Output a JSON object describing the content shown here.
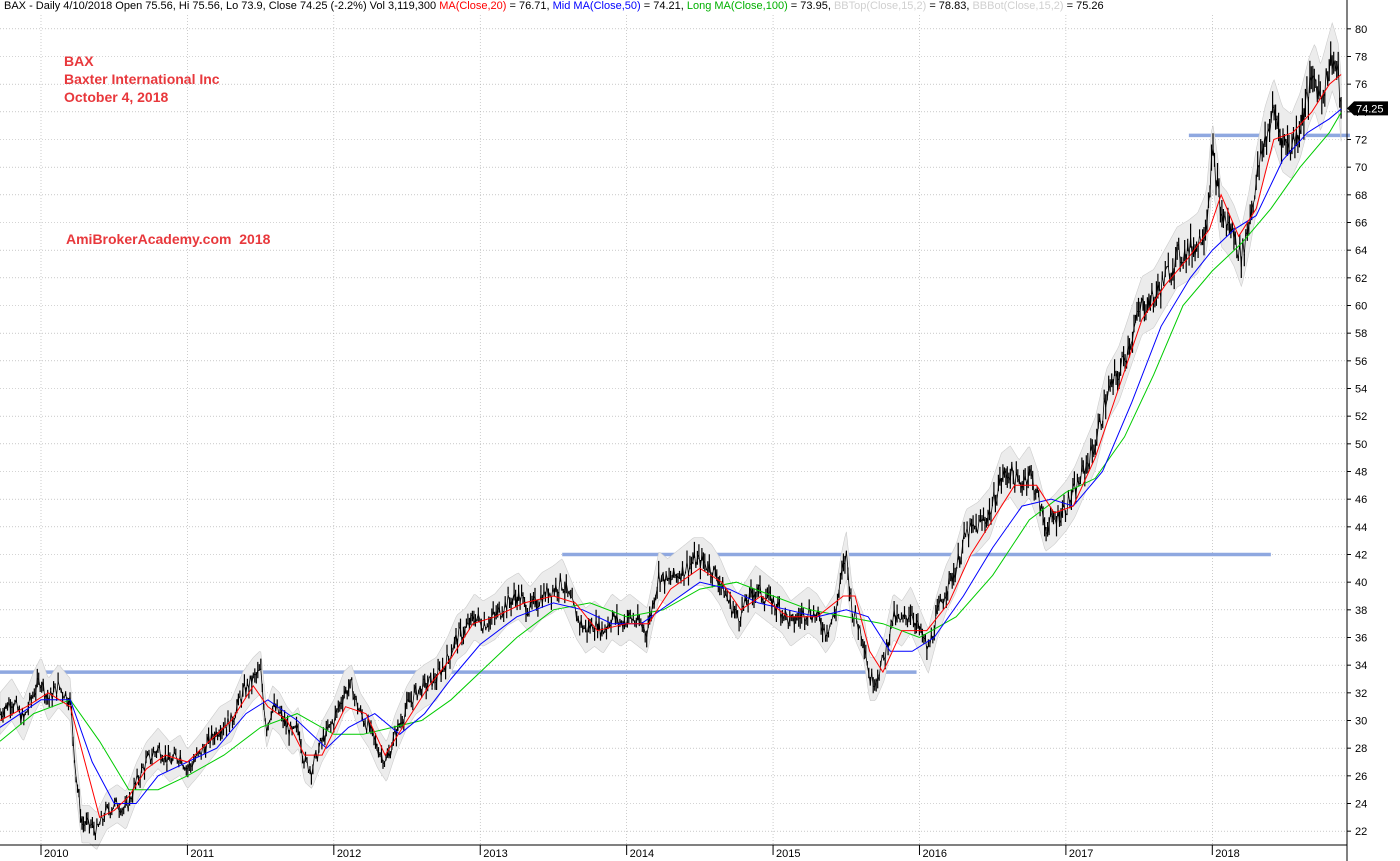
{
  "header": {
    "main": "BAX - Daily 4/10/2018 Open 75.56, Hi 75.56, Lo 73.9, Close 74.25 (-2.2%) Vol 3,119,300",
    "ma20": "MA(Close,20)",
    "ma20_value": " = 76.71, ",
    "ma50": "Mid MA(Close,50)",
    "ma50_value": " = 74.21, ",
    "ma100": "Long MA(Close,100)",
    "ma100_value": " = 73.95, ",
    "bbtop": "BBTop(Close,15,2)",
    "bbtop_value": " = 78.83, ",
    "bbbot": "BBBot(Close,15,2)",
    "bbbot_value": " = 75.26"
  },
  "annotations": {
    "ticker": "BAX",
    "company": "Baxter International Inc",
    "date": "October 4, 2018",
    "watermark": "AmiBrokerAcademy.com  2018"
  },
  "last_price_label": "74.25",
  "colors": {
    "price": "#000000",
    "ma20": "#ff0000",
    "ma50": "#0000ff",
    "ma100": "#00cc00",
    "bollinger": "#cccccc",
    "support_lines": "#8fa8e0",
    "annotation_text": "#e8383c",
    "grid": "#aaaaaa"
  },
  "chart_data": {
    "type": "line",
    "ylim": [
      21,
      81
    ],
    "y_ticks": [
      22,
      24,
      26,
      28,
      30,
      32,
      34,
      36,
      38,
      40,
      42,
      44,
      46,
      48,
      50,
      52,
      54,
      56,
      58,
      60,
      62,
      64,
      66,
      68,
      70,
      72,
      74,
      76,
      78,
      80
    ],
    "x_labels": [
      "2010",
      "2011",
      "2012",
      "2013",
      "2014",
      "2015",
      "2016",
      "2017",
      "2018"
    ],
    "x_start": 2009.72,
    "x_end": 2018.92,
    "grid": true,
    "price": [
      [
        2009.72,
        30.5
      ],
      [
        2009.8,
        31.5
      ],
      [
        2009.88,
        30.0
      ],
      [
        2009.95,
        32.0
      ],
      [
        2010.0,
        33.0
      ],
      [
        2010.05,
        31.5
      ],
      [
        2010.12,
        32.5
      ],
      [
        2010.2,
        31.5
      ],
      [
        2010.24,
        26.0
      ],
      [
        2010.28,
        22.5
      ],
      [
        2010.33,
        22.5
      ],
      [
        2010.38,
        22.0
      ],
      [
        2010.45,
        23.5
      ],
      [
        2010.52,
        24.0
      ],
      [
        2010.58,
        23.5
      ],
      [
        2010.65,
        25.5
      ],
      [
        2010.72,
        27.0
      ],
      [
        2010.8,
        28.0
      ],
      [
        2010.88,
        27.0
      ],
      [
        2010.95,
        27.5
      ],
      [
        2011.0,
        26.5
      ],
      [
        2011.08,
        27.5
      ],
      [
        2011.15,
        28.5
      ],
      [
        2011.22,
        29.5
      ],
      [
        2011.3,
        30.0
      ],
      [
        2011.38,
        32.0
      ],
      [
        2011.45,
        33.0
      ],
      [
        2011.5,
        33.5
      ],
      [
        2011.54,
        29.5
      ],
      [
        2011.58,
        31.0
      ],
      [
        2011.63,
        30.5
      ],
      [
        2011.68,
        29.5
      ],
      [
        2011.72,
        29.0
      ],
      [
        2011.76,
        29.5
      ],
      [
        2011.8,
        27.0
      ],
      [
        2011.85,
        26.5
      ],
      [
        2011.92,
        28.5
      ],
      [
        2012.0,
        30.0
      ],
      [
        2012.07,
        32.0
      ],
      [
        2012.12,
        32.5
      ],
      [
        2012.18,
        30.5
      ],
      [
        2012.24,
        29.5
      ],
      [
        2012.3,
        28.0
      ],
      [
        2012.36,
        27.0
      ],
      [
        2012.42,
        29.0
      ],
      [
        2012.5,
        31.0
      ],
      [
        2012.56,
        32.0
      ],
      [
        2012.62,
        32.5
      ],
      [
        2012.7,
        33.0
      ],
      [
        2012.78,
        34.5
      ],
      [
        2012.84,
        36.0
      ],
      [
        2012.9,
        36.5
      ],
      [
        2012.96,
        37.5
      ],
      [
        2013.02,
        37.0
      ],
      [
        2013.1,
        37.5
      ],
      [
        2013.18,
        38.5
      ],
      [
        2013.26,
        39.0
      ],
      [
        2013.34,
        38.0
      ],
      [
        2013.42,
        39.0
      ],
      [
        2013.5,
        39.5
      ],
      [
        2013.56,
        40.0
      ],
      [
        2013.62,
        38.5
      ],
      [
        2013.66,
        37.5
      ],
      [
        2013.72,
        36.5
      ],
      [
        2013.78,
        37.0
      ],
      [
        2013.84,
        36.5
      ],
      [
        2013.9,
        37.5
      ],
      [
        2013.96,
        37.0
      ],
      [
        2014.02,
        37.5
      ],
      [
        2014.08,
        37.0
      ],
      [
        2014.14,
        36.5
      ],
      [
        2014.22,
        40.5
      ],
      [
        2014.28,
        40.0
      ],
      [
        2014.34,
        40.5
      ],
      [
        2014.4,
        41.0
      ],
      [
        2014.46,
        41.5
      ],
      [
        2014.52,
        41.5
      ],
      [
        2014.58,
        41.0
      ],
      [
        2014.64,
        40.0
      ],
      [
        2014.7,
        38.5
      ],
      [
        2014.76,
        37.5
      ],
      [
        2014.82,
        38.5
      ],
      [
        2014.88,
        39.5
      ],
      [
        2014.94,
        39.0
      ],
      [
        2015.0,
        38.5
      ],
      [
        2015.06,
        38.0
      ],
      [
        2015.12,
        37.0
      ],
      [
        2015.18,
        37.5
      ],
      [
        2015.24,
        38.0
      ],
      [
        2015.3,
        37.5
      ],
      [
        2015.36,
        36.5
      ],
      [
        2015.42,
        37.5
      ],
      [
        2015.47,
        40.5
      ],
      [
        2015.5,
        42.0
      ],
      [
        2015.54,
        38.0
      ],
      [
        2015.58,
        37.0
      ],
      [
        2015.62,
        36.0
      ],
      [
        2015.66,
        33.0
      ],
      [
        2015.7,
        33.0
      ],
      [
        2015.76,
        34.5
      ],
      [
        2015.82,
        37.5
      ],
      [
        2015.88,
        37.0
      ],
      [
        2015.94,
        38.0
      ],
      [
        2016.0,
        36.5
      ],
      [
        2016.06,
        35.0
      ],
      [
        2016.12,
        37.5
      ],
      [
        2016.18,
        39.5
      ],
      [
        2016.25,
        41.0
      ],
      [
        2016.32,
        43.5
      ],
      [
        2016.4,
        44.0
      ],
      [
        2016.48,
        45.0
      ],
      [
        2016.56,
        47.5
      ],
      [
        2016.62,
        48.0
      ],
      [
        2016.68,
        47.0
      ],
      [
        2016.75,
        48.0
      ],
      [
        2016.8,
        46.5
      ],
      [
        2016.86,
        44.0
      ],
      [
        2016.92,
        44.5
      ],
      [
        2017.0,
        45.5
      ],
      [
        2017.06,
        46.5
      ],
      [
        2017.12,
        48.0
      ],
      [
        2017.2,
        50.0
      ],
      [
        2017.28,
        53.5
      ],
      [
        2017.36,
        55.0
      ],
      [
        2017.44,
        57.5
      ],
      [
        2017.52,
        60.0
      ],
      [
        2017.6,
        60.5
      ],
      [
        2017.68,
        62.0
      ],
      [
        2017.76,
        63.5
      ],
      [
        2017.84,
        64.0
      ],
      [
        2017.9,
        64.5
      ],
      [
        2017.96,
        66.0
      ],
      [
        2018.0,
        71.0
      ],
      [
        2018.03,
        69.0
      ],
      [
        2018.06,
        66.5
      ],
      [
        2018.1,
        66.0
      ],
      [
        2018.15,
        65.0
      ],
      [
        2018.2,
        63.5
      ],
      [
        2018.25,
        66.0
      ],
      [
        2018.3,
        69.0
      ],
      [
        2018.36,
        72.0
      ],
      [
        2018.42,
        74.0
      ],
      [
        2018.48,
        72.0
      ],
      [
        2018.54,
        71.5
      ],
      [
        2018.6,
        73.0
      ],
      [
        2018.66,
        75.5
      ],
      [
        2018.7,
        76.5
      ],
      [
        2018.74,
        75.0
      ],
      [
        2018.78,
        76.5
      ],
      [
        2018.82,
        78.0
      ],
      [
        2018.86,
        76.5
      ],
      [
        2018.88,
        74.25
      ]
    ],
    "ma20": [
      [
        2009.72,
        30.0
      ],
      [
        2009.9,
        31.0
      ],
      [
        2010.05,
        32.0
      ],
      [
        2010.2,
        31.0
      ],
      [
        2010.3,
        27.0
      ],
      [
        2010.4,
        23.0
      ],
      [
        2010.5,
        23.5
      ],
      [
        2010.6,
        24.5
      ],
      [
        2010.72,
        26.5
      ],
      [
        2010.85,
        27.5
      ],
      [
        2011.0,
        27.0
      ],
      [
        2011.15,
        28.5
      ],
      [
        2011.3,
        30.0
      ],
      [
        2011.45,
        32.5
      ],
      [
        2011.55,
        31.0
      ],
      [
        2011.68,
        30.0
      ],
      [
        2011.8,
        27.5
      ],
      [
        2011.92,
        27.5
      ],
      [
        2012.08,
        31.0
      ],
      [
        2012.22,
        30.5
      ],
      [
        2012.35,
        27.5
      ],
      [
        2012.5,
        30.0
      ],
      [
        2012.65,
        32.5
      ],
      [
        2012.8,
        34.5
      ],
      [
        2012.95,
        37.0
      ],
      [
        2013.1,
        37.5
      ],
      [
        2013.3,
        38.5
      ],
      [
        2013.5,
        39.0
      ],
      [
        2013.65,
        38.5
      ],
      [
        2013.8,
        36.5
      ],
      [
        2014.0,
        37.0
      ],
      [
        2014.15,
        37.0
      ],
      [
        2014.3,
        39.5
      ],
      [
        2014.5,
        41.0
      ],
      [
        2014.65,
        40.0
      ],
      [
        2014.78,
        38.0
      ],
      [
        2014.92,
        39.0
      ],
      [
        2015.1,
        37.5
      ],
      [
        2015.3,
        37.5
      ],
      [
        2015.48,
        39.0
      ],
      [
        2015.56,
        39.0
      ],
      [
        2015.66,
        35.0
      ],
      [
        2015.75,
        33.5
      ],
      [
        2015.88,
        36.5
      ],
      [
        2016.05,
        36.5
      ],
      [
        2016.2,
        38.5
      ],
      [
        2016.35,
        42.0
      ],
      [
        2016.5,
        44.5
      ],
      [
        2016.65,
        47.0
      ],
      [
        2016.8,
        47.0
      ],
      [
        2016.92,
        45.0
      ],
      [
        2017.05,
        45.5
      ],
      [
        2017.2,
        49.0
      ],
      [
        2017.36,
        54.0
      ],
      [
        2017.52,
        59.0
      ],
      [
        2017.68,
        61.5
      ],
      [
        2017.84,
        63.5
      ],
      [
        2017.98,
        65.5
      ],
      [
        2018.06,
        68.0
      ],
      [
        2018.18,
        65.0
      ],
      [
        2018.3,
        67.0
      ],
      [
        2018.42,
        72.0
      ],
      [
        2018.55,
        72.5
      ],
      [
        2018.68,
        74.0
      ],
      [
        2018.8,
        76.0
      ],
      [
        2018.88,
        76.7
      ]
    ],
    "ma50": [
      [
        2009.72,
        29.5
      ],
      [
        2010.0,
        31.5
      ],
      [
        2010.2,
        31.5
      ],
      [
        2010.35,
        27.0
      ],
      [
        2010.5,
        24.0
      ],
      [
        2010.65,
        24.0
      ],
      [
        2010.8,
        26.0
      ],
      [
        2011.0,
        27.0
      ],
      [
        2011.2,
        28.0
      ],
      [
        2011.4,
        30.5
      ],
      [
        2011.55,
        31.5
      ],
      [
        2011.75,
        30.0
      ],
      [
        2011.95,
        28.0
      ],
      [
        2012.1,
        29.5
      ],
      [
        2012.28,
        30.5
      ],
      [
        2012.45,
        29.0
      ],
      [
        2012.62,
        30.5
      ],
      [
        2012.8,
        33.0
      ],
      [
        2013.0,
        35.5
      ],
      [
        2013.25,
        37.5
      ],
      [
        2013.5,
        38.5
      ],
      [
        2013.7,
        38.0
      ],
      [
        2013.9,
        37.0
      ],
      [
        2014.1,
        37.0
      ],
      [
        2014.3,
        38.5
      ],
      [
        2014.5,
        40.0
      ],
      [
        2014.7,
        39.5
      ],
      [
        2014.9,
        38.5
      ],
      [
        2015.1,
        38.0
      ],
      [
        2015.3,
        37.5
      ],
      [
        2015.5,
        38.0
      ],
      [
        2015.65,
        37.5
      ],
      [
        2015.8,
        35.0
      ],
      [
        2015.95,
        35.0
      ],
      [
        2016.1,
        36.0
      ],
      [
        2016.3,
        39.0
      ],
      [
        2016.5,
        42.5
      ],
      [
        2016.7,
        45.5
      ],
      [
        2016.9,
        46.0
      ],
      [
        2017.05,
        45.5
      ],
      [
        2017.25,
        48.0
      ],
      [
        2017.45,
        53.0
      ],
      [
        2017.65,
        58.5
      ],
      [
        2017.85,
        62.0
      ],
      [
        2018.0,
        64.0
      ],
      [
        2018.15,
        65.5
      ],
      [
        2018.3,
        66.5
      ],
      [
        2018.48,
        70.5
      ],
      [
        2018.65,
        72.5
      ],
      [
        2018.8,
        73.5
      ],
      [
        2018.88,
        74.2
      ]
    ],
    "ma100": [
      [
        2009.72,
        28.5
      ],
      [
        2009.95,
        30.5
      ],
      [
        2010.2,
        31.5
      ],
      [
        2010.4,
        28.5
      ],
      [
        2010.6,
        25.0
      ],
      [
        2010.8,
        25.0
      ],
      [
        2011.0,
        26.0
      ],
      [
        2011.25,
        27.5
      ],
      [
        2011.5,
        29.5
      ],
      [
        2011.75,
        30.5
      ],
      [
        2012.0,
        29.0
      ],
      [
        2012.2,
        29.0
      ],
      [
        2012.4,
        29.5
      ],
      [
        2012.6,
        30.0
      ],
      [
        2012.8,
        31.5
      ],
      [
        2013.0,
        33.5
      ],
      [
        2013.25,
        36.0
      ],
      [
        2013.5,
        38.0
      ],
      [
        2013.75,
        38.5
      ],
      [
        2014.0,
        37.5
      ],
      [
        2014.25,
        38.0
      ],
      [
        2014.5,
        39.5
      ],
      [
        2014.75,
        40.0
      ],
      [
        2015.0,
        39.0
      ],
      [
        2015.25,
        38.0
      ],
      [
        2015.5,
        37.5
      ],
      [
        2015.75,
        37.0
      ],
      [
        2016.0,
        36.0
      ],
      [
        2016.25,
        37.5
      ],
      [
        2016.5,
        40.5
      ],
      [
        2016.75,
        44.5
      ],
      [
        2017.0,
        46.5
      ],
      [
        2017.2,
        47.5
      ],
      [
        2017.4,
        50.5
      ],
      [
        2017.6,
        55.0
      ],
      [
        2017.8,
        60.0
      ],
      [
        2018.0,
        62.5
      ],
      [
        2018.2,
        64.5
      ],
      [
        2018.4,
        67.0
      ],
      [
        2018.6,
        70.0
      ],
      [
        2018.8,
        72.5
      ],
      [
        2018.88,
        73.95
      ]
    ],
    "support_lines": [
      {
        "x1": 2009.66,
        "x2": 2015.98,
        "y": 33.5
      },
      {
        "x1": 2013.56,
        "x2": 2018.4,
        "y": 42.0
      },
      {
        "x1": 2017.84,
        "x2": 2018.94,
        "y": 72.3
      }
    ]
  }
}
